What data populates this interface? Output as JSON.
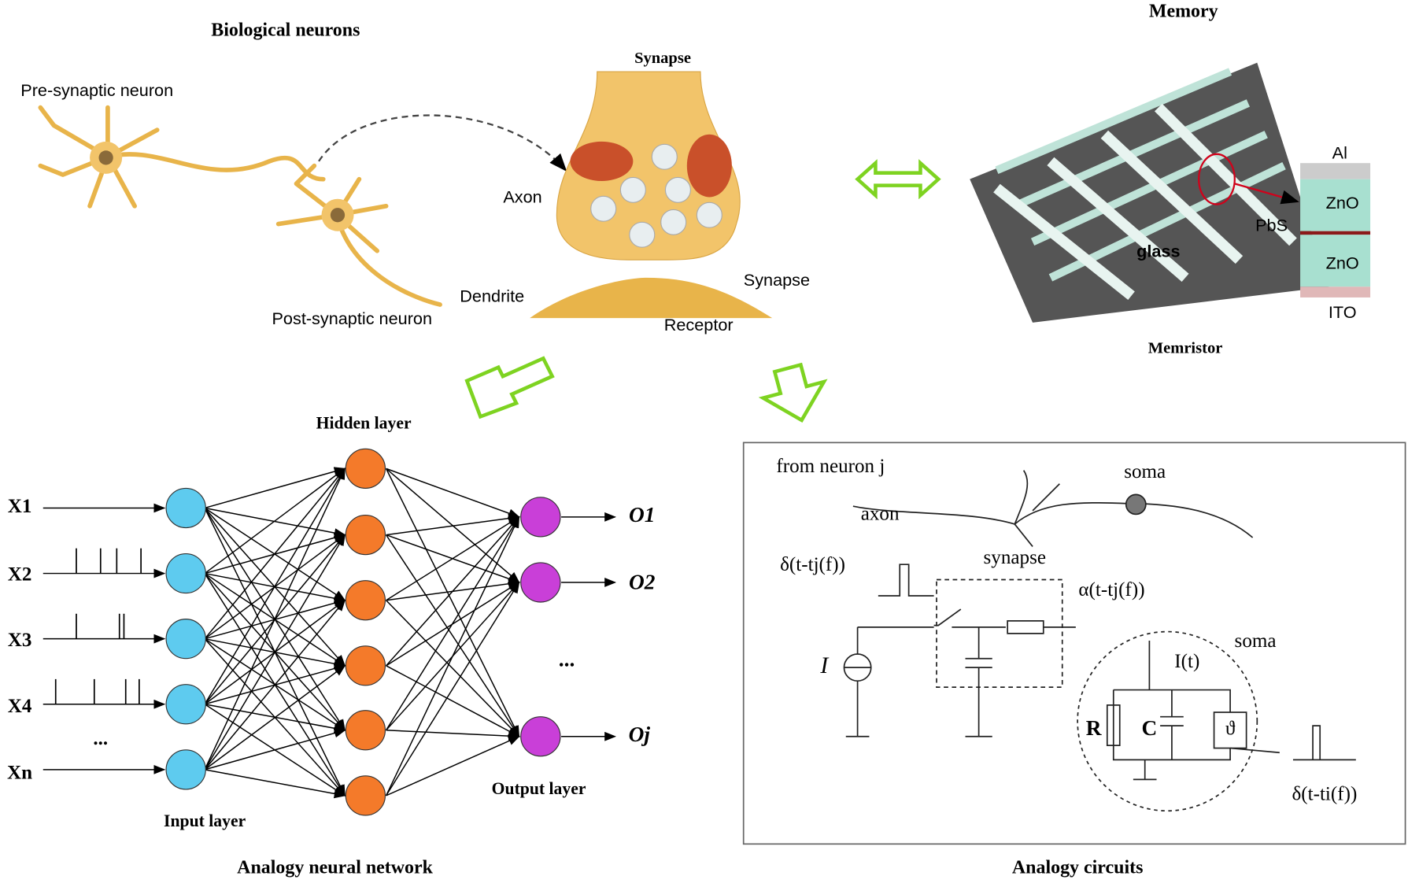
{
  "biological": {
    "title": "Biological neurons",
    "pre": "Pre-synaptic neuron",
    "post": "Post-synaptic neuron"
  },
  "synapse": {
    "title": "Synapse",
    "axon": "Axon",
    "dendrite": "Dendrite",
    "cleft": "Synapse",
    "receptor": "Receptor"
  },
  "memory": {
    "title": "Memory",
    "subtitle": "Memristor",
    "glass": "glass",
    "layers": [
      "Al",
      "ZnO",
      "PbS",
      "ZnO",
      "ITO"
    ]
  },
  "network": {
    "title": "Analogy neural network",
    "hidden": "Hidden layer",
    "input": "Input layer",
    "output": "Output layer",
    "inputs": [
      "X1",
      "X2",
      "X3",
      "X4",
      "...",
      "Xn"
    ],
    "outputs": [
      "O1",
      "O2",
      "...",
      "Oj"
    ]
  },
  "circuits": {
    "title": "Analogy circuits",
    "from": "from neuron j",
    "axon": "axon",
    "soma_top": "soma",
    "synapse": "synapse",
    "delta_in": "δ(t-tj(f))",
    "alpha": "α(t-tj(f))",
    "current": "I",
    "soma": "soma",
    "current_t": "I(t)",
    "r": "R",
    "c": "C",
    "theta": "ϑ",
    "delta_out": "δ(t-ti(f))"
  }
}
